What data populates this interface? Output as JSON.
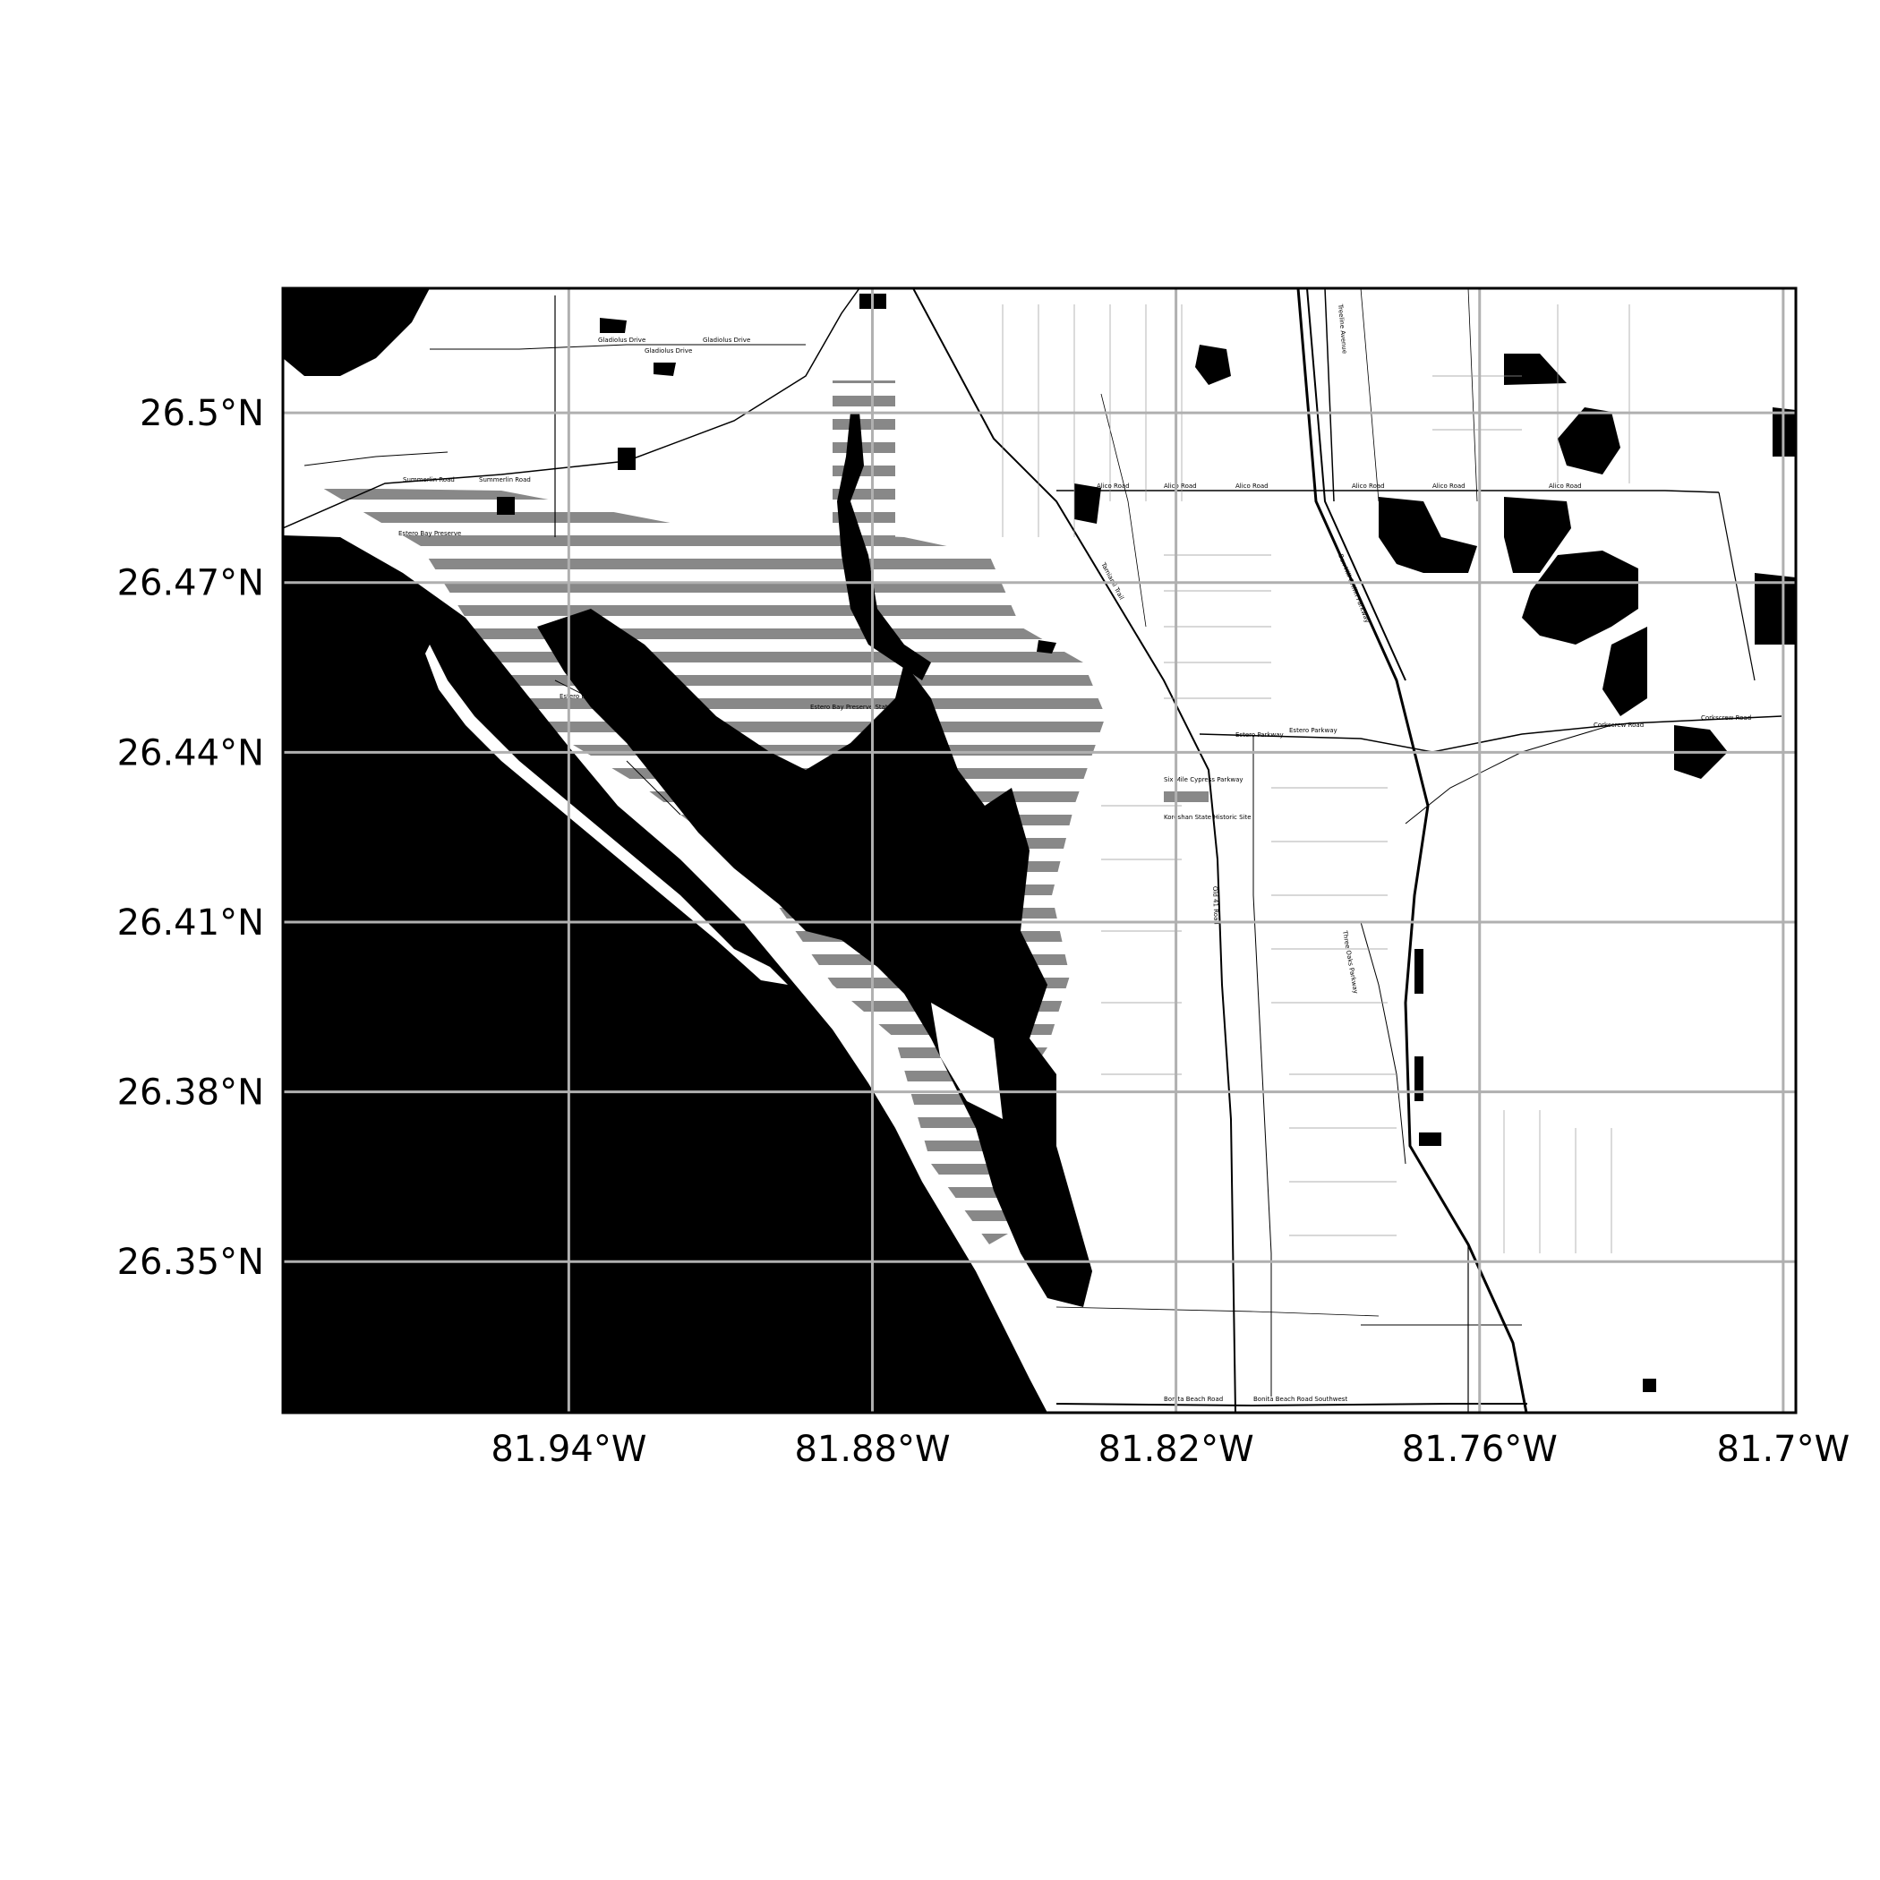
{
  "map": {
    "extent": {
      "lon_min": -81.9965,
      "lon_max": -81.6975,
      "lat_min": 26.3233,
      "lat_max": 26.522
    },
    "gridlines": {
      "longitudes": [
        -81.94,
        -81.88,
        -81.82,
        -81.76,
        -81.7
      ],
      "latitudes": [
        26.35,
        26.38,
        26.41,
        26.44,
        26.47,
        26.5
      ]
    },
    "tick_labels": {
      "x": [
        "81.94°W",
        "81.88°W",
        "81.82°W",
        "81.76°W",
        "81.7°W"
      ],
      "y": [
        "26.35°N",
        "26.38°N",
        "26.41°N",
        "26.44°N",
        "26.47°N",
        "26.5°N"
      ]
    },
    "road_labels": [
      "Gladiolus Drive",
      "Gladiolus Drive",
      "Gladiolus Drive",
      "Summerlin Road",
      "Summerlin Road",
      "Alico Road",
      "Alico Road",
      "Alico Road",
      "Alico Road",
      "Alico Road",
      "Alico Road",
      "Estero Parkway",
      "Estero Parkway",
      "Corkscrew Road",
      "Corkscrew Road",
      "Bonita Beach Road",
      "Bonita Beach Road Southwest",
      "Estero Boulevard",
      "Estero Boulevard",
      "Estero Bay Preserve State Park",
      "Estero Bay Preserve",
      "Six Mile Cypress Parkway",
      "Three Oaks Parkway",
      "Tamiami Trail",
      "Ben Hill Griffin Parkway",
      "Treeline Avenue",
      "Koreshan State Historic Site",
      "Old 41 Road"
    ],
    "colors": {
      "water": "#000000",
      "land": "#ffffff",
      "grid": "#b0b0b0",
      "hatch": "#888888"
    }
  }
}
